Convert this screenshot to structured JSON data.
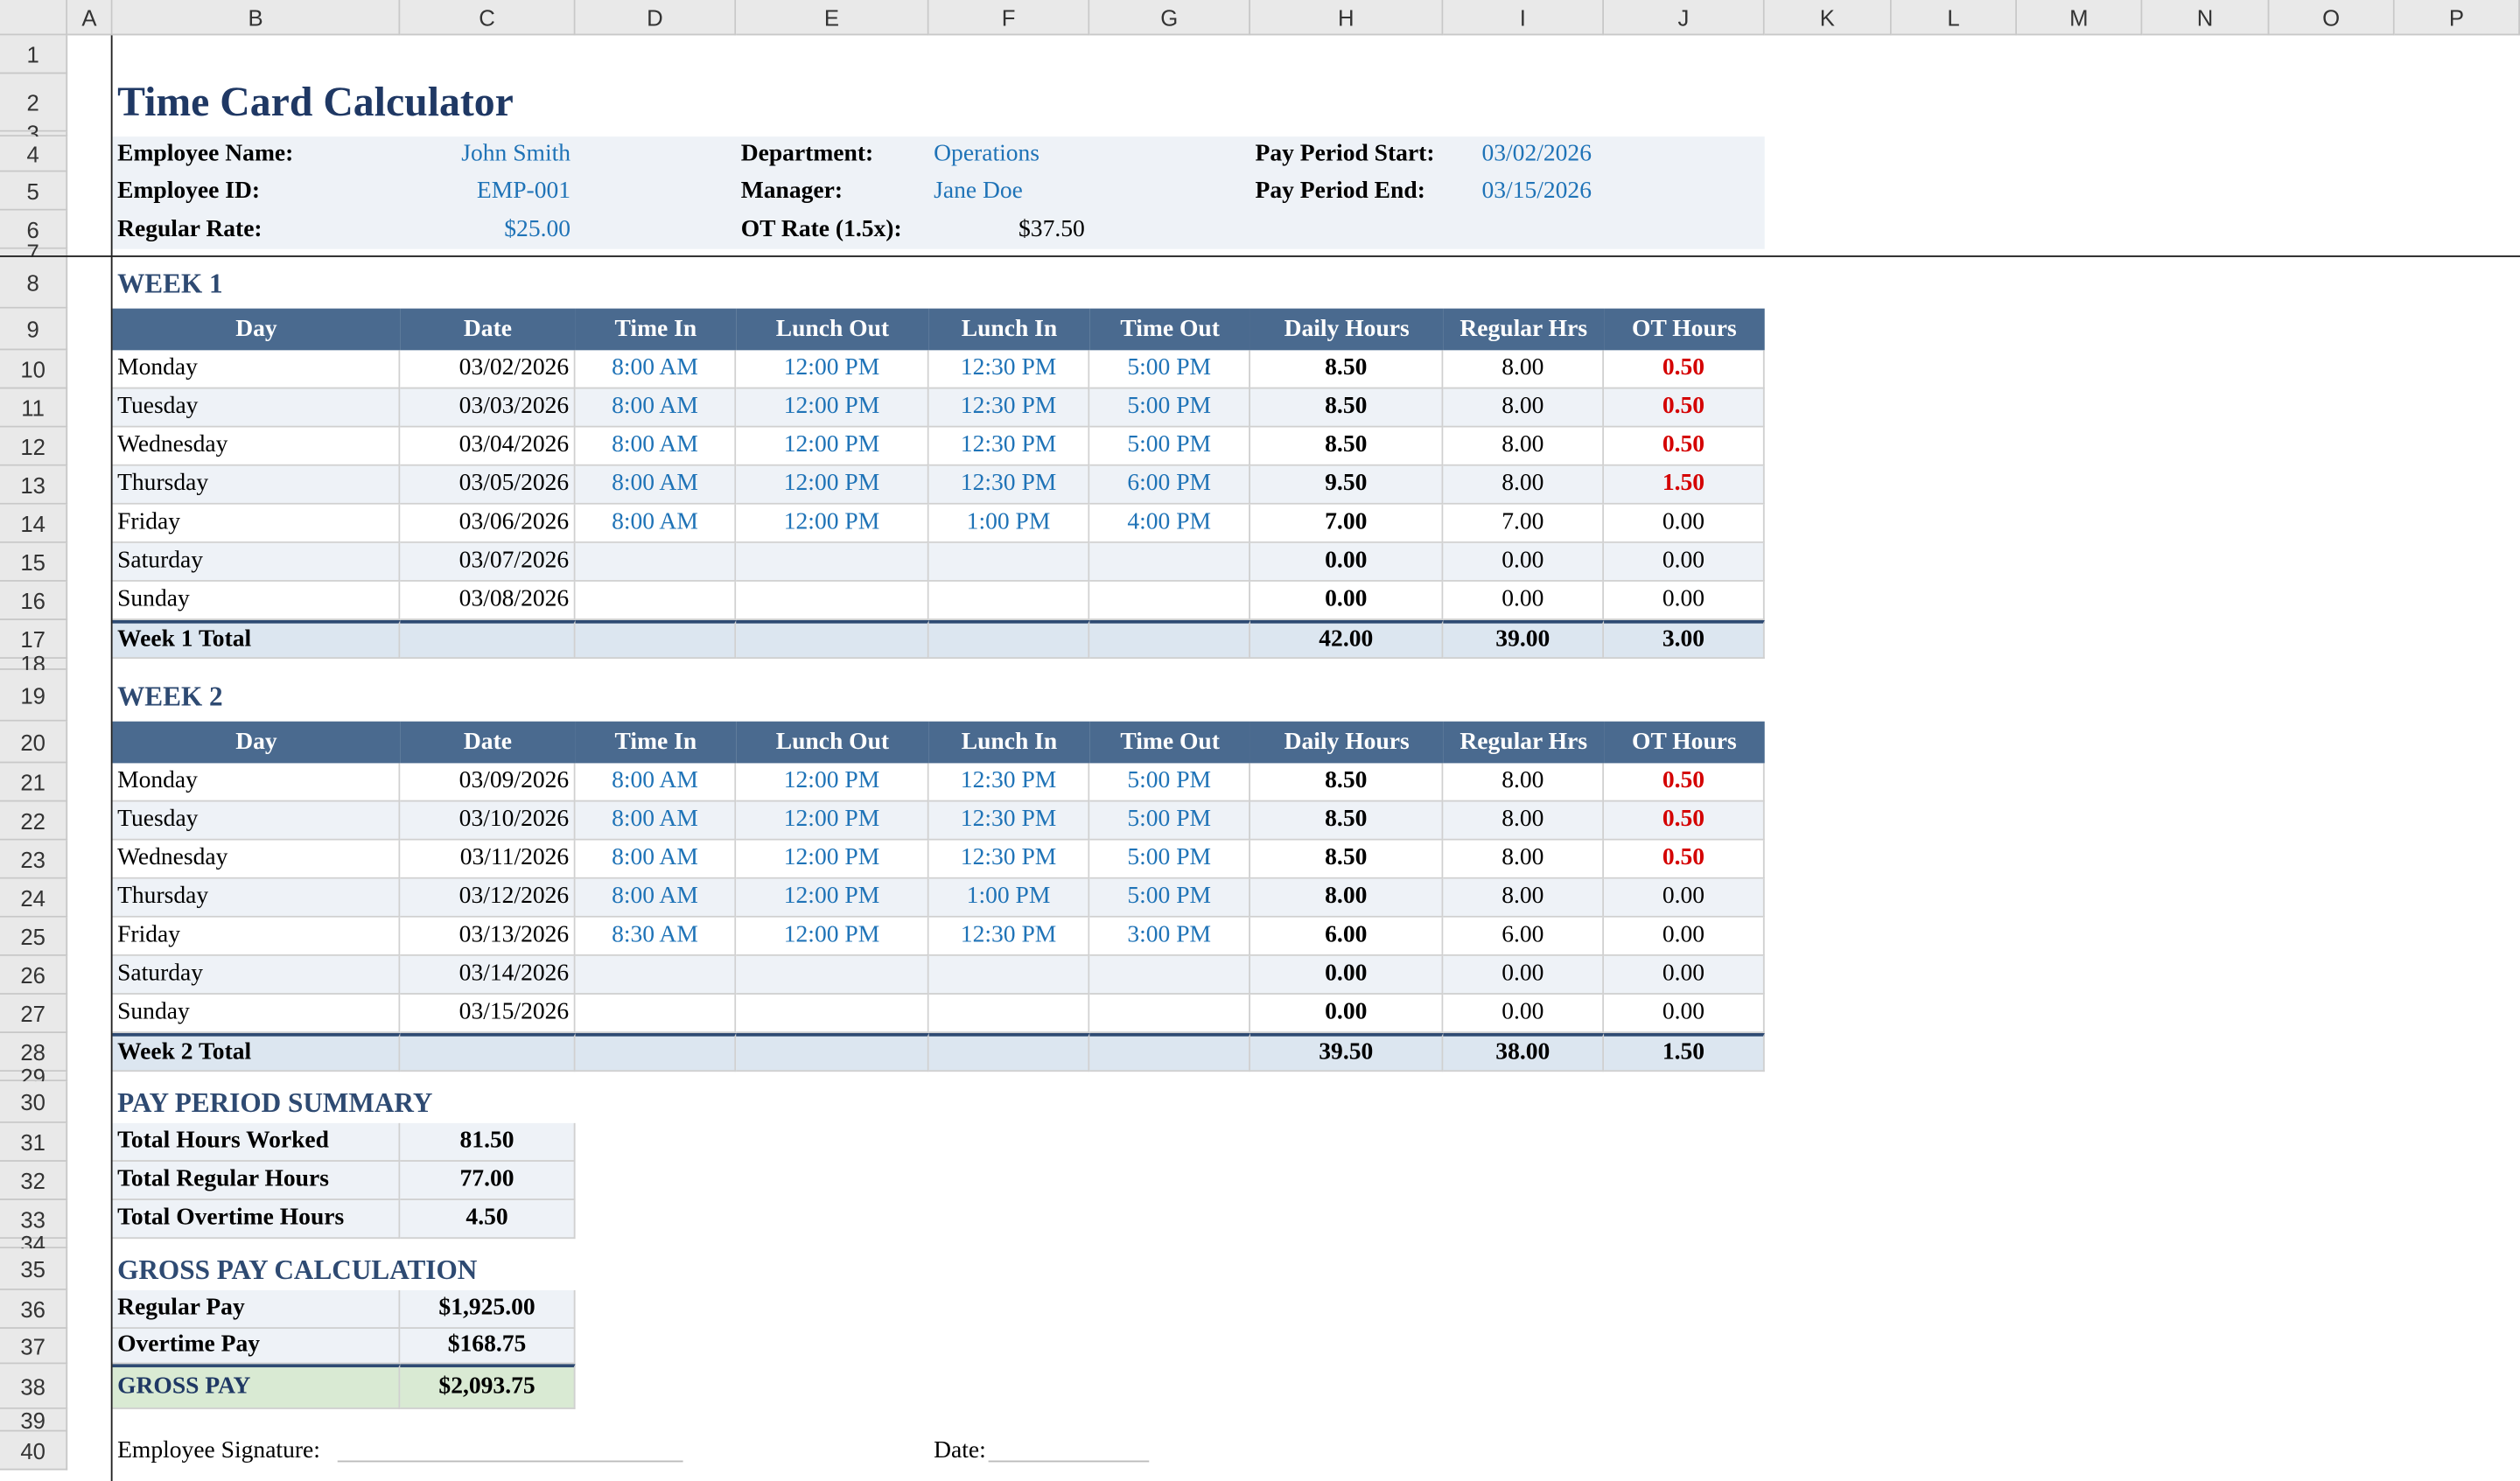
{
  "column_headers": [
    "A",
    "B",
    "C",
    "D",
    "E",
    "F",
    "G",
    "H",
    "I",
    "J",
    "K",
    "L",
    "M",
    "N",
    "O",
    "P"
  ],
  "row_numbers": [
    1,
    2,
    3,
    4,
    5,
    6,
    7,
    8,
    9,
    10,
    11,
    12,
    13,
    14,
    15,
    16,
    17,
    18,
    19,
    20,
    21,
    22,
    23,
    24,
    25,
    26,
    27,
    28,
    29,
    30,
    31,
    32,
    33,
    34,
    35,
    36,
    37,
    38,
    39,
    40
  ],
  "title": "Time Card Calculator",
  "employee_info": {
    "rows": [
      [
        {
          "label": "Employee Name:",
          "value": "John Smith"
        },
        {
          "label": "Department:",
          "value": "Operations"
        },
        {
          "label": "Pay Period Start:",
          "value": "03/02/2026"
        }
      ],
      [
        {
          "label": "Employee ID:",
          "value": "EMP-001"
        },
        {
          "label": "Manager:",
          "value": "Jane Doe"
        },
        {
          "label": "Pay Period End:",
          "value": "03/15/2026"
        }
      ],
      [
        {
          "label": "Regular Rate:",
          "value": "$25.00"
        },
        {
          "label": "OT Rate (1.5x):",
          "value": "$37.50"
        }
      ]
    ]
  },
  "weeks": [
    {
      "title": "WEEK 1",
      "columns": [
        "Day",
        "Date",
        "Time In",
        "Lunch Out",
        "Lunch In",
        "Time Out",
        "Daily Hours",
        "Regular Hrs",
        "OT Hours"
      ],
      "rows": [
        [
          "Monday",
          "03/02/2026",
          "8:00 AM",
          "12:00 PM",
          "12:30 PM",
          "5:00 PM",
          "8.50",
          "8.00",
          "0.50"
        ],
        [
          "Tuesday",
          "03/03/2026",
          "8:00 AM",
          "12:00 PM",
          "12:30 PM",
          "5:00 PM",
          "8.50",
          "8.00",
          "0.50"
        ],
        [
          "Wednesday",
          "03/04/2026",
          "8:00 AM",
          "12:00 PM",
          "12:30 PM",
          "5:00 PM",
          "8.50",
          "8.00",
          "0.50"
        ],
        [
          "Thursday",
          "03/05/2026",
          "8:00 AM",
          "12:00 PM",
          "12:30 PM",
          "6:00 PM",
          "9.50",
          "8.00",
          "1.50"
        ],
        [
          "Friday",
          "03/06/2026",
          "8:00 AM",
          "12:00 PM",
          "1:00 PM",
          "4:00 PM",
          "7.00",
          "7.00",
          "0.00"
        ],
        [
          "Saturday",
          "03/07/2026",
          null,
          null,
          null,
          null,
          "0.00",
          "0.00",
          "0.00"
        ],
        [
          "Sunday",
          "03/08/2026",
          null,
          null,
          null,
          null,
          "0.00",
          "0.00",
          "0.00"
        ]
      ],
      "total": {
        "label": "Week 1 Total",
        "daily": "42.00",
        "regular": "39.00",
        "ot": "3.00"
      }
    },
    {
      "title": "WEEK 2",
      "columns": [
        "Day",
        "Date",
        "Time In",
        "Lunch Out",
        "Lunch In",
        "Time Out",
        "Daily Hours",
        "Regular Hrs",
        "OT Hours"
      ],
      "rows": [
        [
          "Monday",
          "03/09/2026",
          "8:00 AM",
          "12:00 PM",
          "12:30 PM",
          "5:00 PM",
          "8.50",
          "8.00",
          "0.50"
        ],
        [
          "Tuesday",
          "03/10/2026",
          "8:00 AM",
          "12:00 PM",
          "12:30 PM",
          "5:00 PM",
          "8.50",
          "8.00",
          "0.50"
        ],
        [
          "Wednesday",
          "03/11/2026",
          "8:00 AM",
          "12:00 PM",
          "12:30 PM",
          "5:00 PM",
          "8.50",
          "8.00",
          "0.50"
        ],
        [
          "Thursday",
          "03/12/2026",
          "8:00 AM",
          "12:00 PM",
          "1:00 PM",
          "5:00 PM",
          "8.00",
          "8.00",
          "0.00"
        ],
        [
          "Friday",
          "03/13/2026",
          "8:30 AM",
          "12:00 PM",
          "12:30 PM",
          "3:00 PM",
          "6.00",
          "6.00",
          "0.00"
        ],
        [
          "Saturday",
          "03/14/2026",
          null,
          null,
          null,
          null,
          "0.00",
          "0.00",
          "0.00"
        ],
        [
          "Sunday",
          "03/15/2026",
          null,
          null,
          null,
          null,
          "0.00",
          "0.00",
          "0.00"
        ]
      ],
      "total": {
        "label": "Week 2 Total",
        "daily": "39.50",
        "regular": "38.00",
        "ot": "1.50"
      }
    }
  ],
  "summary": {
    "title": "PAY PERIOD SUMMARY",
    "rows": [
      [
        "Total Hours Worked",
        "81.50"
      ],
      [
        "Total Regular Hours",
        "77.00"
      ],
      [
        "Total Overtime Hours",
        "4.50"
      ]
    ]
  },
  "gross": {
    "title": "GROSS PAY CALCULATION",
    "rows": [
      [
        "Regular Pay",
        "$1,925.00"
      ],
      [
        "Overtime Pay",
        "$168.75"
      ]
    ],
    "total": [
      "GROSS PAY",
      "$2,093.75"
    ]
  },
  "signature": {
    "employee": "Employee Signature:",
    "date": "Date:"
  }
}
